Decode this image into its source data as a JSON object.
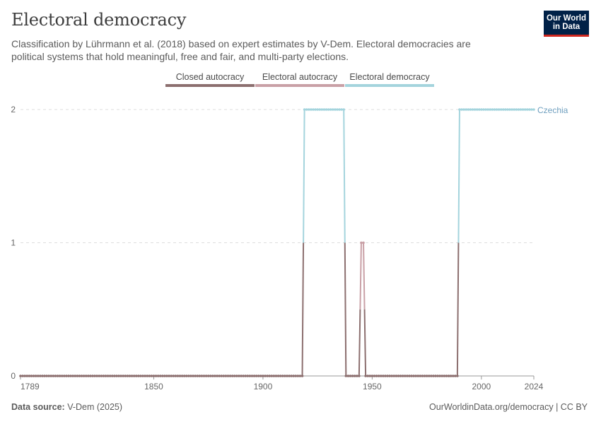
{
  "header": {
    "title": "Electoral democracy",
    "subtitle": "Classification by Lührmann et al. (2018) based on expert estimates by V-Dem. Electoral democracies are political systems that hold meaningful, free and fair, and multi-party elections."
  },
  "logo": {
    "line1": "Our World",
    "line2": "in Data",
    "bg_color": "#002147",
    "accent_color": "#ce261e"
  },
  "legend": [
    {
      "label": "Closed autocracy",
      "color": "#8c6f6f"
    },
    {
      "label": "Electoral autocracy",
      "color": "#c9a0a6"
    },
    {
      "label": "Electoral democracy",
      "color": "#a4d4dd"
    }
  ],
  "footer": {
    "source_label": "Data source:",
    "source_value": "V-Dem (2025)",
    "link": "OurWorldinData.org/democracy",
    "license": "CC BY"
  },
  "chart_data": {
    "type": "line",
    "title": "Electoral democracy",
    "xlabel": "",
    "ylabel": "",
    "xlim": [
      1789,
      2024
    ],
    "ylim": [
      0,
      2
    ],
    "x_ticks": [
      1789,
      1850,
      1900,
      1950,
      2000,
      2024
    ],
    "y_ticks": [
      0,
      1,
      2
    ],
    "gridlines": "horizontal dashed",
    "series": [
      {
        "name": "Czechia",
        "color": "#a4d4dd",
        "label_color": "#6f9fbf",
        "segments": [
          {
            "x": [
              1789,
              1918
            ],
            "y": 0
          },
          {
            "x": [
              1919,
              1937
            ],
            "y": 2
          },
          {
            "x": [
              1938,
              1944
            ],
            "y": 0
          },
          {
            "x": [
              1945,
              1946
            ],
            "y": 1
          },
          {
            "x": [
              1947,
              1989
            ],
            "y": 0
          },
          {
            "x": [
              1990,
              2024
            ],
            "y": 2
          }
        ]
      }
    ],
    "category_colors": {
      "0": "#8c6f6f",
      "1": "#c9a0a6",
      "2": "#a4d4dd"
    },
    "end_label": "Czechia"
  }
}
